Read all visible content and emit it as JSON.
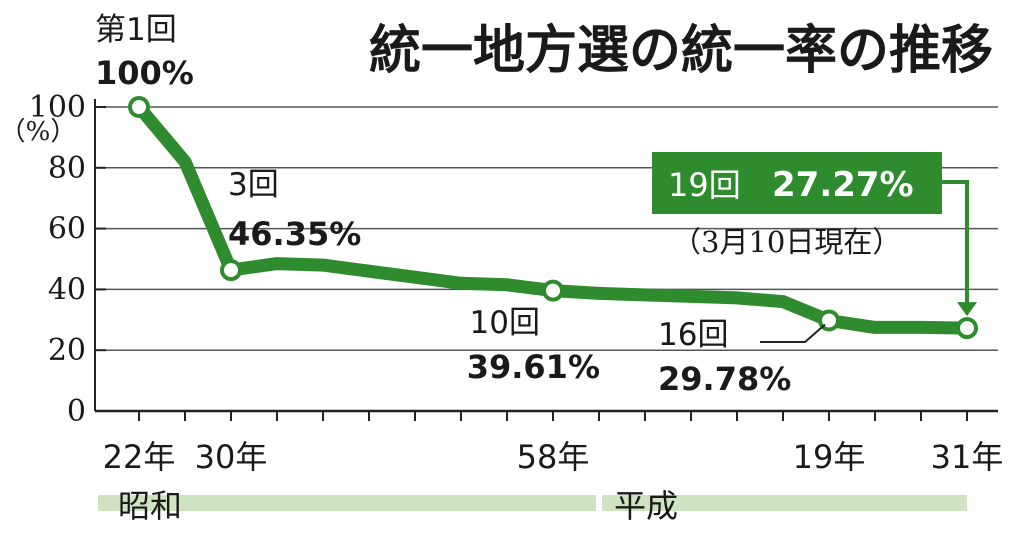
{
  "chart_data": {
    "type": "line",
    "title": "統一地方選の統一率の推移",
    "ylabel": "（%）",
    "ylim": [
      0,
      100
    ],
    "y_ticks": [
      "0",
      "20",
      "40",
      "60",
      "80",
      "100"
    ],
    "x_ticks": [
      {
        "x": 1,
        "label": "22年"
      },
      {
        "x": 3,
        "label": "30年"
      },
      {
        "x": 10,
        "label": "58年"
      },
      {
        "x": 16,
        "label": "19年"
      },
      {
        "x": 19,
        "label": "31年"
      }
    ],
    "era_bands": [
      {
        "label": "昭和",
        "from": 0.0,
        "to": 11.0
      },
      {
        "label": "平成",
        "from": 11.0,
        "to": 19.0
      }
    ],
    "grid": true,
    "color": "#2e8b2e",
    "series": [
      {
        "values": [
          {
            "x": 1,
            "y": 100.0
          },
          {
            "x": 2,
            "y": 82.0
          },
          {
            "x": 3,
            "y": 46.35
          },
          {
            "x": 4,
            "y": 48.5
          },
          {
            "x": 5,
            "y": 48.0
          },
          {
            "x": 6,
            "y": 46.0
          },
          {
            "x": 7,
            "y": 44.0
          },
          {
            "x": 8,
            "y": 42.0
          },
          {
            "x": 9,
            "y": 41.5
          },
          {
            "x": 10,
            "y": 39.61
          },
          {
            "x": 11,
            "y": 38.7
          },
          {
            "x": 12,
            "y": 38.2
          },
          {
            "x": 13,
            "y": 37.7
          },
          {
            "x": 14,
            "y": 37.2
          },
          {
            "x": 15,
            "y": 36.0
          },
          {
            "x": 16,
            "y": 29.78
          },
          {
            "x": 17,
            "y": 27.5
          },
          {
            "x": 18,
            "y": 27.5
          },
          {
            "x": 19,
            "y": 27.27
          }
        ]
      }
    ],
    "annotations": [
      {
        "x": 1,
        "line1": "第1回",
        "line2": "100%"
      },
      {
        "x": 3,
        "line1": "3回",
        "line2": "46.35%"
      },
      {
        "x": 10,
        "line1": "10回",
        "line2": "39.61%"
      },
      {
        "x": 16,
        "line1": "16回",
        "line2": "29.78%"
      }
    ],
    "callout": {
      "x": 19,
      "line1": "19回",
      "line2": "27.27%",
      "note": "（3月10日現在）"
    }
  }
}
